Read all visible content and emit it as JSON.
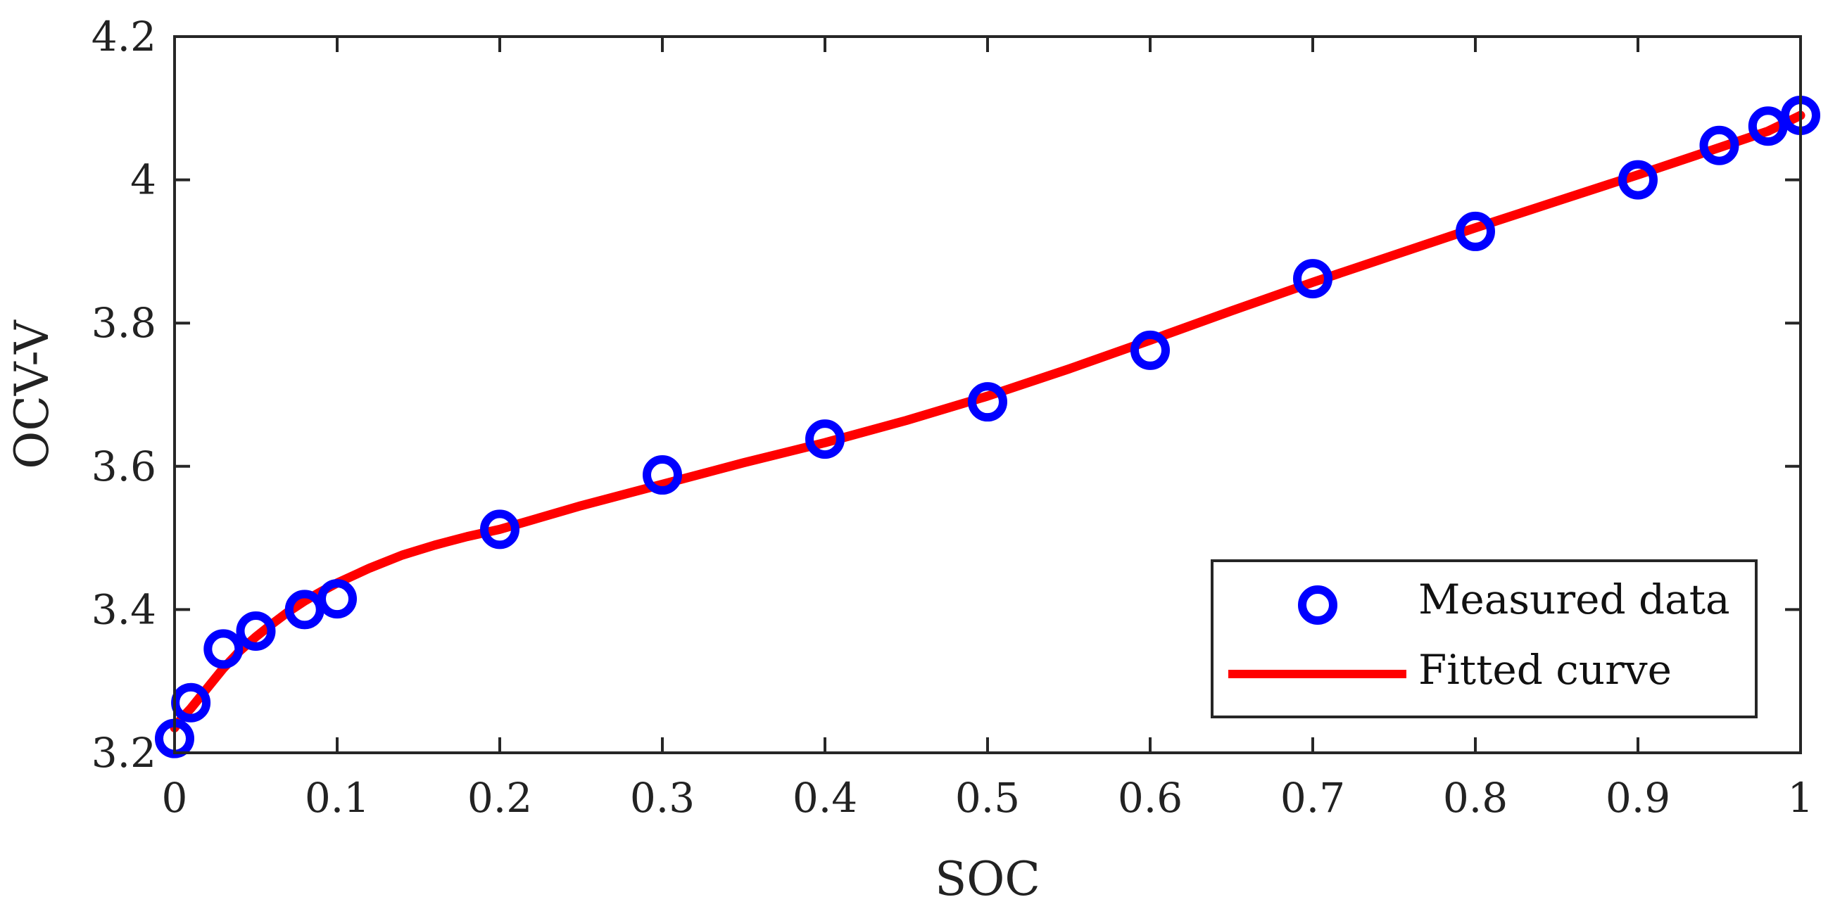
{
  "chart_data": {
    "type": "scatter",
    "title": "",
    "xlabel": "SOC",
    "ylabel": "OCV-V",
    "xlim": [
      0,
      1
    ],
    "ylim": [
      3.2,
      4.2
    ],
    "x_ticks": [
      0,
      0.1,
      0.2,
      0.3,
      0.4,
      0.5,
      0.6,
      0.7,
      0.8,
      0.9,
      1
    ],
    "x_tick_labels": [
      "0",
      "0.1",
      "0.2",
      "0.3",
      "0.4",
      "0.5",
      "0.6",
      "0.7",
      "0.8",
      "0.9",
      "1"
    ],
    "y_ticks": [
      3.2,
      3.4,
      3.6,
      3.8,
      4.0,
      4.2
    ],
    "y_tick_labels": [
      "3.2",
      "3.4",
      "3.6",
      "3.8",
      "4",
      "4.2"
    ],
    "grid": false,
    "legend_position": "bottom-right",
    "series": [
      {
        "name": "Measured data",
        "kind": "scatter",
        "marker": "circle",
        "color": "#0000ff",
        "x": [
          0,
          0.01,
          0.03,
          0.05,
          0.08,
          0.1,
          0.2,
          0.3,
          0.4,
          0.5,
          0.6,
          0.7,
          0.8,
          0.9,
          0.95,
          0.98,
          1.0
        ],
        "y": [
          3.22,
          3.27,
          3.345,
          3.37,
          3.4,
          3.415,
          3.512,
          3.588,
          3.638,
          3.69,
          3.762,
          3.862,
          3.928,
          4.0,
          4.048,
          4.075,
          4.09
        ]
      },
      {
        "name": "Fitted curve",
        "kind": "line",
        "color": "#ff0000",
        "x": [
          0,
          0.005,
          0.01,
          0.02,
          0.03,
          0.04,
          0.05,
          0.06,
          0.07,
          0.08,
          0.09,
          0.1,
          0.12,
          0.14,
          0.16,
          0.18,
          0.2,
          0.25,
          0.3,
          0.35,
          0.4,
          0.45,
          0.5,
          0.55,
          0.6,
          0.65,
          0.7,
          0.75,
          0.8,
          0.85,
          0.9,
          0.95,
          0.98,
          1.0
        ],
        "y": [
          3.235,
          3.25,
          3.262,
          3.29,
          3.318,
          3.342,
          3.362,
          3.38,
          3.397,
          3.412,
          3.425,
          3.437,
          3.458,
          3.476,
          3.49,
          3.502,
          3.512,
          3.545,
          3.575,
          3.605,
          3.633,
          3.664,
          3.698,
          3.736,
          3.776,
          3.817,
          3.857,
          3.895,
          3.933,
          3.97,
          4.007,
          4.045,
          4.068,
          4.09
        ]
      }
    ]
  }
}
